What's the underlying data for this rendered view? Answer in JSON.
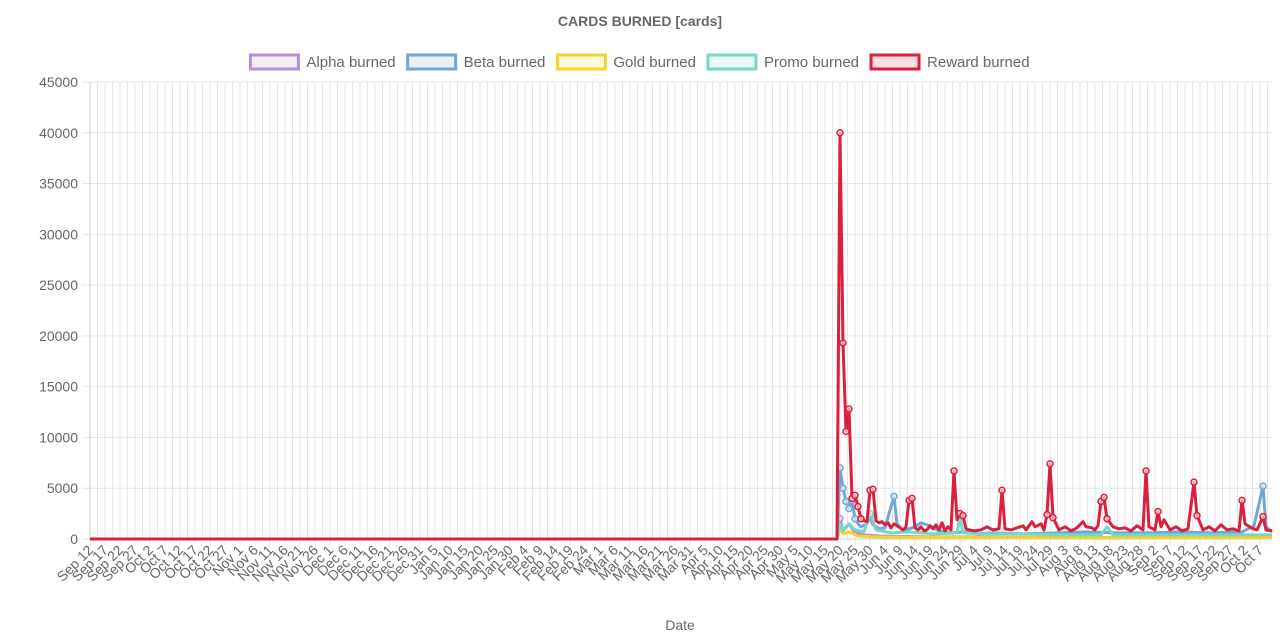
{
  "chart_data": {
    "type": "line",
    "title": "CARDS BURNED [cards]",
    "xlabel": "Date",
    "ylabel": "",
    "ylim": [
      0,
      45000
    ],
    "yticks": [
      0,
      5000,
      10000,
      15000,
      20000,
      25000,
      30000,
      35000,
      40000,
      45000
    ],
    "grid": true,
    "legend_position": "top",
    "x_tick_labels": [
      "Sep 12",
      "Sep 17",
      "Sep 22",
      "Sep 27",
      "Oct 2",
      "Oct 7",
      "Oct 12",
      "Oct 17",
      "Oct 22",
      "Oct 27",
      "Nov 1",
      "Nov 6",
      "Nov 11",
      "Nov 16",
      "Nov 21",
      "Nov 26",
      "Dec 1",
      "Dec 6",
      "Dec 11",
      "Dec 16",
      "Dec 21",
      "Dec 26",
      "Dec 31",
      "Jan 5",
      "Jan 10",
      "Jan 15",
      "Jan 20",
      "Jan 25",
      "Jan 30",
      "Feb 4",
      "Feb 9",
      "Feb 14",
      "Feb 19",
      "Feb 24",
      "Mar 1",
      "Mar 6",
      "Mar 11",
      "Mar 16",
      "Mar 21",
      "Mar 26",
      "Mar 31",
      "Apr 5",
      "Apr 10",
      "Apr 15",
      "Apr 20",
      "Apr 25",
      "Apr 30",
      "May 5",
      "May 10",
      "May 15",
      "May 20",
      "May 25",
      "May 30",
      "Jun 4",
      "Jun 9",
      "Jun 14",
      "Jun 19",
      "Jun 24",
      "Jun 29",
      "Jul 4",
      "Jul 9",
      "Jul 14",
      "Jul 19",
      "Jul 24",
      "Jul 29",
      "Aug 3",
      "Aug 8",
      "Aug 13",
      "Aug 18",
      "Aug 23",
      "Aug 28",
      "Sep 2",
      "Sep 7",
      "Sep 12",
      "Sep 17",
      "Sep 22",
      "Sep 27",
      "Oct 2",
      "Oct 7"
    ],
    "series": [
      {
        "name": "Alpha burned",
        "color": "#b58fd6",
        "points": [
          [
            "Sep 12",
            0
          ],
          [
            "May 19",
            0
          ],
          [
            "May 20",
            2000
          ],
          [
            "May 21",
            800
          ],
          [
            "May 23",
            1500
          ],
          [
            "May 25",
            600
          ],
          [
            "May 28",
            400
          ],
          [
            "Jun 2",
            300
          ],
          [
            "Jun 10",
            250
          ],
          [
            "Jun 20",
            200
          ],
          [
            "Jul 1",
            200
          ],
          [
            "Jul 15",
            180
          ],
          [
            "Aug 1",
            150
          ],
          [
            "Aug 15",
            150
          ],
          [
            "Sep 1",
            150
          ],
          [
            "Sep 20",
            150
          ],
          [
            "Oct 10",
            150
          ]
        ]
      },
      {
        "name": "Beta burned",
        "color": "#6fa8d6",
        "points": [
          [
            "Sep 12",
            0
          ],
          [
            "May 19",
            0
          ],
          [
            "May 20",
            7000
          ],
          [
            "May 21",
            5000
          ],
          [
            "May 22",
            3700
          ],
          [
            "May 23",
            3000
          ],
          [
            "May 24",
            3800
          ],
          [
            "May 25",
            2000
          ],
          [
            "May 26",
            1500
          ],
          [
            "May 27",
            1200
          ],
          [
            "May 29",
            1500
          ],
          [
            "May 30",
            2200
          ],
          [
            "May 31",
            1400
          ],
          [
            "Jun 2",
            1000
          ],
          [
            "Jun 4",
            1100
          ],
          [
            "Jun 7",
            4200
          ],
          [
            "Jun 8",
            1500
          ],
          [
            "Jun 10",
            800
          ],
          [
            "Jun 14",
            1200
          ],
          [
            "Jun 16",
            1600
          ],
          [
            "Jun 19",
            1300
          ],
          [
            "Jun 22",
            800
          ],
          [
            "Jun 26",
            600
          ],
          [
            "Jul 1",
            700
          ],
          [
            "Jul 5",
            500
          ],
          [
            "Jul 10",
            600
          ],
          [
            "Jul 20",
            500
          ],
          [
            "Aug 1",
            600
          ],
          [
            "Aug 10",
            700
          ],
          [
            "Aug 20",
            600
          ],
          [
            "Sep 1",
            600
          ],
          [
            "Sep 10",
            700
          ],
          [
            "Sep 20",
            600
          ],
          [
            "Oct 1",
            700
          ],
          [
            "Oct 5",
            1300
          ],
          [
            "Oct 8",
            5200
          ],
          [
            "Oct 9",
            1200
          ],
          [
            "Oct 11",
            700
          ]
        ]
      },
      {
        "name": "Gold burned",
        "color": "#f5d327",
        "points": [
          [
            "Sep 12",
            0
          ],
          [
            "May 19",
            0
          ],
          [
            "May 20",
            1000
          ],
          [
            "May 21",
            500
          ],
          [
            "May 23",
            700
          ],
          [
            "May 26",
            300
          ],
          [
            "Jun 1",
            200
          ],
          [
            "Jun 15",
            150
          ],
          [
            "Jul 1",
            150
          ],
          [
            "Aug 1",
            120
          ],
          [
            "Sep 1",
            120
          ],
          [
            "Oct 11",
            120
          ]
        ]
      },
      {
        "name": "Promo burned",
        "color": "#74d8c4",
        "points": [
          [
            "Sep 12",
            0
          ],
          [
            "May 19",
            0
          ],
          [
            "May 20",
            1500
          ],
          [
            "May 21",
            800
          ],
          [
            "May 23",
            1500
          ],
          [
            "May 25",
            900
          ],
          [
            "May 28",
            700
          ],
          [
            "May 30",
            2500
          ],
          [
            "Jun 1",
            900
          ],
          [
            "Jun 6",
            600
          ],
          [
            "Jun 12",
            700
          ],
          [
            "Jun 20",
            500
          ],
          [
            "Jun 28",
            600
          ],
          [
            "Jun 29",
            2300
          ],
          [
            "Jun 30",
            600
          ],
          [
            "Jul 5",
            500
          ],
          [
            "Jul 20",
            500
          ],
          [
            "Aug 1",
            400
          ],
          [
            "Aug 15",
            400
          ],
          [
            "Aug 17",
            1200
          ],
          [
            "Aug 19",
            400
          ],
          [
            "Sep 1",
            400
          ],
          [
            "Sep 20",
            400
          ],
          [
            "Oct 11",
            400
          ]
        ]
      },
      {
        "name": "Reward burned",
        "color": "#db1f3c",
        "points": [
          [
            "Sep 12",
            0
          ],
          [
            "May 19",
            0
          ],
          [
            "May 20",
            40000
          ],
          [
            "May 21",
            19300
          ],
          [
            "May 22",
            10600
          ],
          [
            "May 23",
            12800
          ],
          [
            "May 24",
            4000
          ],
          [
            "May 25",
            4300
          ],
          [
            "May 26",
            3200
          ],
          [
            "May 27",
            2000
          ],
          [
            "May 28",
            1800
          ],
          [
            "May 29",
            1700
          ],
          [
            "May 30",
            4800
          ],
          [
            "May 31",
            4900
          ],
          [
            "Jun 1",
            1800
          ],
          [
            "Jun 2",
            1600
          ],
          [
            "Jun 3",
            1700
          ],
          [
            "Jun 4",
            1400
          ],
          [
            "Jun 5",
            1600
          ],
          [
            "Jun 6",
            1100
          ],
          [
            "Jun 7",
            1500
          ],
          [
            "Jun 8",
            1300
          ],
          [
            "Jun 9",
            1100
          ],
          [
            "Jun 10",
            900
          ],
          [
            "Jun 11",
            1200
          ],
          [
            "Jun 12",
            3800
          ],
          [
            "Jun 13",
            4000
          ],
          [
            "Jun 14",
            1100
          ],
          [
            "Jun 15",
            900
          ],
          [
            "Jun 16",
            1200
          ],
          [
            "Jun 17",
            800
          ],
          [
            "Jun 18",
            900
          ],
          [
            "Jun 19",
            1300
          ],
          [
            "Jun 20",
            1000
          ],
          [
            "Jun 21",
            1400
          ],
          [
            "Jun 22",
            900
          ],
          [
            "Jun 23",
            1600
          ],
          [
            "Jun 24",
            800
          ],
          [
            "Jun 25",
            1200
          ],
          [
            "Jun 26",
            900
          ],
          [
            "Jun 27",
            6700
          ],
          [
            "Jun 28",
            1900
          ],
          [
            "Jun 29",
            2500
          ],
          [
            "Jun 30",
            2300
          ],
          [
            "Jul 1",
            1000
          ],
          [
            "Jul 2",
            900
          ],
          [
            "Jul 4",
            800
          ],
          [
            "Jul 6",
            900
          ],
          [
            "Jul 8",
            1200
          ],
          [
            "Jul 10",
            900
          ],
          [
            "Jul 12",
            1000
          ],
          [
            "Jul 13",
            4800
          ],
          [
            "Jul 14",
            1000
          ],
          [
            "Jul 16",
            900
          ],
          [
            "Jul 18",
            1100
          ],
          [
            "Jul 20",
            1300
          ],
          [
            "Jul 21",
            900
          ],
          [
            "Jul 23",
            1700
          ],
          [
            "Jul 24",
            1200
          ],
          [
            "Jul 26",
            1500
          ],
          [
            "Jul 27",
            900
          ],
          [
            "Jul 28",
            2400
          ],
          [
            "Jul 29",
            7400
          ],
          [
            "Jul 30",
            2100
          ],
          [
            "Aug 1",
            900
          ],
          [
            "Aug 3",
            1200
          ],
          [
            "Aug 5",
            800
          ],
          [
            "Aug 7",
            1100
          ],
          [
            "Aug 9",
            1700
          ],
          [
            "Aug 10",
            1200
          ],
          [
            "Aug 12",
            1100
          ],
          [
            "Aug 13",
            900
          ],
          [
            "Aug 14",
            1300
          ],
          [
            "Aug 15",
            3700
          ],
          [
            "Aug 16",
            4100
          ],
          [
            "Aug 17",
            2000
          ],
          [
            "Aug 19",
            1200
          ],
          [
            "Aug 21",
            1000
          ],
          [
            "Aug 23",
            1100
          ],
          [
            "Aug 25",
            800
          ],
          [
            "Aug 27",
            1300
          ],
          [
            "Aug 29",
            900
          ],
          [
            "Aug 30",
            6700
          ],
          [
            "Aug 31",
            1200
          ],
          [
            "Sep 2",
            900
          ],
          [
            "Sep 3",
            2700
          ],
          [
            "Sep 4",
            1200
          ],
          [
            "Sep 5",
            1900
          ],
          [
            "Sep 7",
            900
          ],
          [
            "Sep 9",
            1200
          ],
          [
            "Sep 11",
            800
          ],
          [
            "Sep 13",
            1000
          ],
          [
            "Sep 15",
            5600
          ],
          [
            "Sep 16",
            2300
          ],
          [
            "Sep 18",
            900
          ],
          [
            "Sep 20",
            1200
          ],
          [
            "Sep 22",
            800
          ],
          [
            "Sep 24",
            1400
          ],
          [
            "Sep 26",
            900
          ],
          [
            "Sep 28",
            1000
          ],
          [
            "Sep 30",
            800
          ],
          [
            "Oct 1",
            3800
          ],
          [
            "Oct 2",
            1500
          ],
          [
            "Oct 4",
            1100
          ],
          [
            "Oct 6",
            900
          ],
          [
            "Oct 8",
            2200
          ],
          [
            "Oct 9",
            900
          ],
          [
            "Oct 11",
            800
          ]
        ]
      }
    ]
  }
}
